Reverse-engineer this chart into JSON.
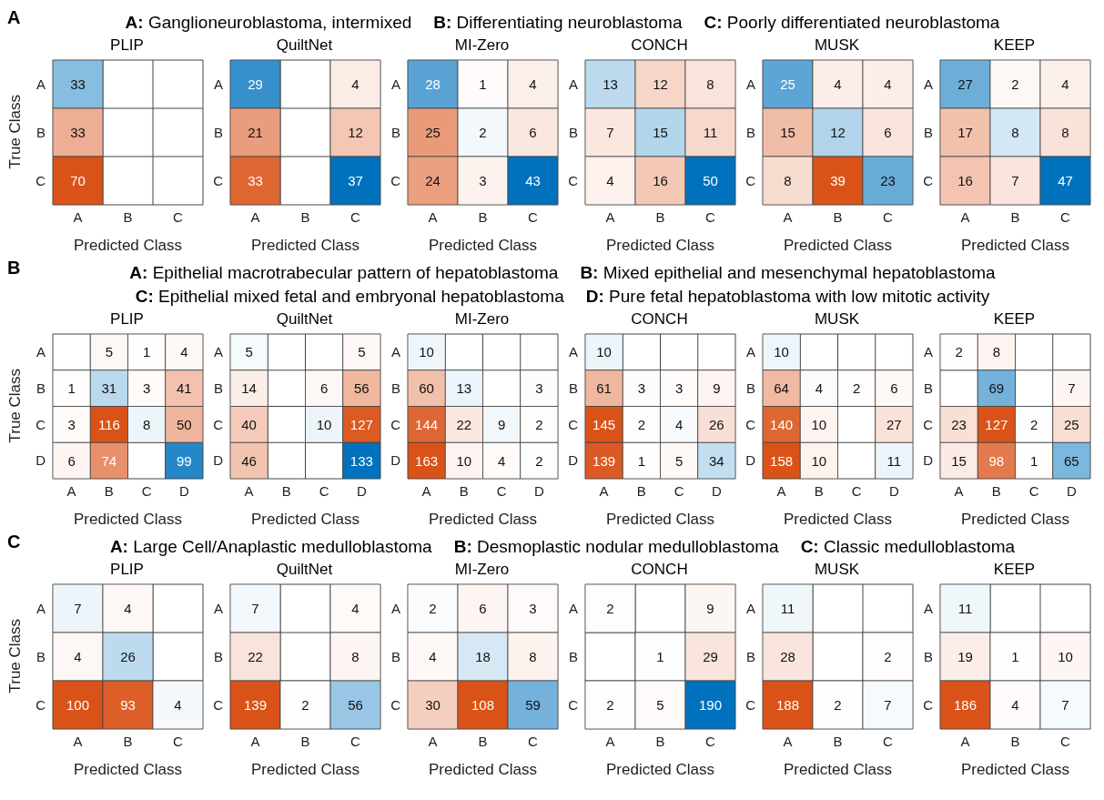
{
  "chart_data": [
    {
      "type": "heatmap",
      "title": "PLIP",
      "xlabel": "Predicted Class",
      "ylabel": "True Class",
      "annotations": [
        "A",
        "A: Ganglioneuroblastoma, intermixed",
        "B: Differentiating neuroblastoma",
        "C: Poorly differentiated neuroblastoma"
      ],
      "categories": [
        "A",
        "B",
        "C"
      ],
      "y_categories": [
        "A",
        "B",
        "C"
      ],
      "data_labels": true,
      "cells": [
        [
          33,
          null,
          null
        ],
        [
          33,
          null,
          null
        ],
        [
          70,
          null,
          null
        ]
      ]
    },
    {
      "type": "heatmap",
      "title": "QuiltNet",
      "xlabel": "Predicted Class",
      "categories": [
        "A",
        "B",
        "C"
      ],
      "y_categories": [
        "A",
        "B",
        "C"
      ],
      "data_labels": true,
      "cells": [
        [
          29,
          null,
          4
        ],
        [
          21,
          null,
          12
        ],
        [
          33,
          null,
          37
        ]
      ]
    },
    {
      "type": "heatmap",
      "title": "MI-Zero",
      "xlabel": "Predicted Class",
      "categories": [
        "A",
        "B",
        "C"
      ],
      "y_categories": [
        "A",
        "B",
        "C"
      ],
      "data_labels": true,
      "cells": [
        [
          28,
          1,
          4
        ],
        [
          25,
          2,
          6
        ],
        [
          24,
          3,
          43
        ]
      ]
    },
    {
      "type": "heatmap",
      "title": "CONCH",
      "xlabel": "Predicted Class",
      "categories": [
        "A",
        "B",
        "C"
      ],
      "y_categories": [
        "A",
        "B",
        "C"
      ],
      "data_labels": true,
      "cells": [
        [
          13,
          12,
          8
        ],
        [
          7,
          15,
          11
        ],
        [
          4,
          16,
          50
        ]
      ]
    },
    {
      "type": "heatmap",
      "title": "MUSK",
      "xlabel": "Predicted Class",
      "categories": [
        "A",
        "B",
        "C"
      ],
      "y_categories": [
        "A",
        "B",
        "C"
      ],
      "data_labels": true,
      "cells": [
        [
          25,
          4,
          4
        ],
        [
          15,
          12,
          6
        ],
        [
          8,
          39,
          23
        ]
      ]
    },
    {
      "type": "heatmap",
      "title": "KEEP",
      "xlabel": "Predicted Class",
      "categories": [
        "A",
        "B",
        "C"
      ],
      "y_categories": [
        "A",
        "B",
        "C"
      ],
      "data_labels": true,
      "cells": [
        [
          27,
          2,
          4
        ],
        [
          17,
          8,
          8
        ],
        [
          16,
          7,
          47
        ]
      ]
    },
    {
      "type": "heatmap",
      "title": "PLIP",
      "xlabel": "Predicted Class",
      "ylabel": "True Class",
      "annotations": [
        "B",
        "A: Epithelial macrotrabecular pattern of hepatoblastoma",
        "B: Mixed epithelial and mesenchymal hepatoblastoma",
        "C: Epithelial mixed fetal and embryonal hepatoblastoma",
        "D: Pure fetal hepatoblastoma with low mitotic activity"
      ],
      "categories": [
        "A",
        "B",
        "C",
        "D"
      ],
      "y_categories": [
        "A",
        "B",
        "C",
        "D"
      ],
      "data_labels": true,
      "cells": [
        [
          null,
          5,
          1,
          4
        ],
        [
          1,
          31,
          3,
          41
        ],
        [
          3,
          116,
          8,
          50
        ],
        [
          6,
          74,
          null,
          99
        ]
      ]
    },
    {
      "type": "heatmap",
      "title": "QuiltNet",
      "xlabel": "Predicted Class",
      "categories": [
        "A",
        "B",
        "C",
        "D"
      ],
      "y_categories": [
        "A",
        "B",
        "C",
        "D"
      ],
      "data_labels": true,
      "cells": [
        [
          5,
          null,
          null,
          5
        ],
        [
          14,
          null,
          6,
          56
        ],
        [
          40,
          null,
          10,
          127
        ],
        [
          46,
          null,
          null,
          133
        ]
      ]
    },
    {
      "type": "heatmap",
      "title": "MI-Zero",
      "xlabel": "Predicted Class",
      "categories": [
        "A",
        "B",
        "C",
        "D"
      ],
      "y_categories": [
        "A",
        "B",
        "C",
        "D"
      ],
      "data_labels": true,
      "cells": [
        [
          10,
          null,
          null,
          null
        ],
        [
          60,
          13,
          null,
          3
        ],
        [
          144,
          22,
          9,
          2
        ],
        [
          163,
          10,
          4,
          2
        ]
      ]
    },
    {
      "type": "heatmap",
      "title": "CONCH",
      "xlabel": "Predicted Class",
      "categories": [
        "A",
        "B",
        "C",
        "D"
      ],
      "y_categories": [
        "A",
        "B",
        "C",
        "D"
      ],
      "data_labels": true,
      "cells": [
        [
          10,
          null,
          null,
          null
        ],
        [
          61,
          3,
          3,
          9
        ],
        [
          145,
          2,
          4,
          26
        ],
        [
          139,
          1,
          5,
          34
        ]
      ]
    },
    {
      "type": "heatmap",
      "title": "MUSK",
      "xlabel": "Predicted Class",
      "categories": [
        "A",
        "B",
        "C",
        "D"
      ],
      "y_categories": [
        "A",
        "B",
        "C",
        "D"
      ],
      "data_labels": true,
      "cells": [
        [
          10,
          null,
          null,
          null
        ],
        [
          64,
          4,
          2,
          6
        ],
        [
          140,
          10,
          null,
          27
        ],
        [
          158,
          10,
          null,
          11
        ]
      ]
    },
    {
      "type": "heatmap",
      "title": "KEEP",
      "xlabel": "Predicted Class",
      "categories": [
        "A",
        "B",
        "C",
        "D"
      ],
      "y_categories": [
        "A",
        "B",
        "C",
        "D"
      ],
      "data_labels": true,
      "cells": [
        [
          2,
          8,
          null,
          null
        ],
        [
          null,
          69,
          null,
          7
        ],
        [
          23,
          127,
          2,
          25
        ],
        [
          15,
          98,
          1,
          65
        ]
      ]
    },
    {
      "type": "heatmap",
      "title": "PLIP",
      "xlabel": "Predicted Class",
      "ylabel": "True Class",
      "annotations": [
        "C",
        "A: Large Cell/Anaplastic medulloblastoma",
        "B: Desmoplastic nodular medulloblastoma",
        "C: Classic medulloblastoma"
      ],
      "categories": [
        "A",
        "B",
        "C"
      ],
      "y_categories": [
        "A",
        "B",
        "C"
      ],
      "data_labels": true,
      "cells": [
        [
          7,
          4,
          null
        ],
        [
          4,
          26,
          null
        ],
        [
          100,
          93,
          4
        ]
      ]
    },
    {
      "type": "heatmap",
      "title": "QuiltNet",
      "xlabel": "Predicted Class",
      "categories": [
        "A",
        "B",
        "C"
      ],
      "y_categories": [
        "A",
        "B",
        "C"
      ],
      "data_labels": true,
      "cells": [
        [
          7,
          null,
          4
        ],
        [
          22,
          null,
          8
        ],
        [
          139,
          2,
          56
        ]
      ]
    },
    {
      "type": "heatmap",
      "title": "MI-Zero",
      "xlabel": "Predicted Class",
      "categories": [
        "A",
        "B",
        "C"
      ],
      "y_categories": [
        "A",
        "B",
        "C"
      ],
      "data_labels": true,
      "cells": [
        [
          2,
          6,
          3
        ],
        [
          4,
          18,
          8
        ],
        [
          30,
          108,
          59
        ]
      ]
    },
    {
      "type": "heatmap",
      "title": "CONCH",
      "xlabel": "Predicted Class",
      "categories": [
        "A",
        "B",
        "C"
      ],
      "y_categories": [
        "A",
        "B",
        "C"
      ],
      "data_labels": true,
      "cells": [
        [
          2,
          null,
          9
        ],
        [
          null,
          1,
          29
        ],
        [
          2,
          5,
          190
        ]
      ]
    },
    {
      "type": "heatmap",
      "title": "MUSK",
      "xlabel": "Predicted Class",
      "categories": [
        "A",
        "B",
        "C"
      ],
      "y_categories": [
        "A",
        "B",
        "C"
      ],
      "data_labels": true,
      "cells": [
        [
          11,
          null,
          null
        ],
        [
          28,
          null,
          2
        ],
        [
          188,
          2,
          7
        ]
      ]
    },
    {
      "type": "heatmap",
      "title": "KEEP",
      "xlabel": "Predicted Class",
      "categories": [
        "A",
        "B",
        "C"
      ],
      "y_categories": [
        "A",
        "B",
        "C"
      ],
      "data_labels": true,
      "cells": [
        [
          11,
          null,
          null
        ],
        [
          19,
          1,
          10
        ],
        [
          186,
          4,
          7
        ]
      ]
    }
  ]
}
